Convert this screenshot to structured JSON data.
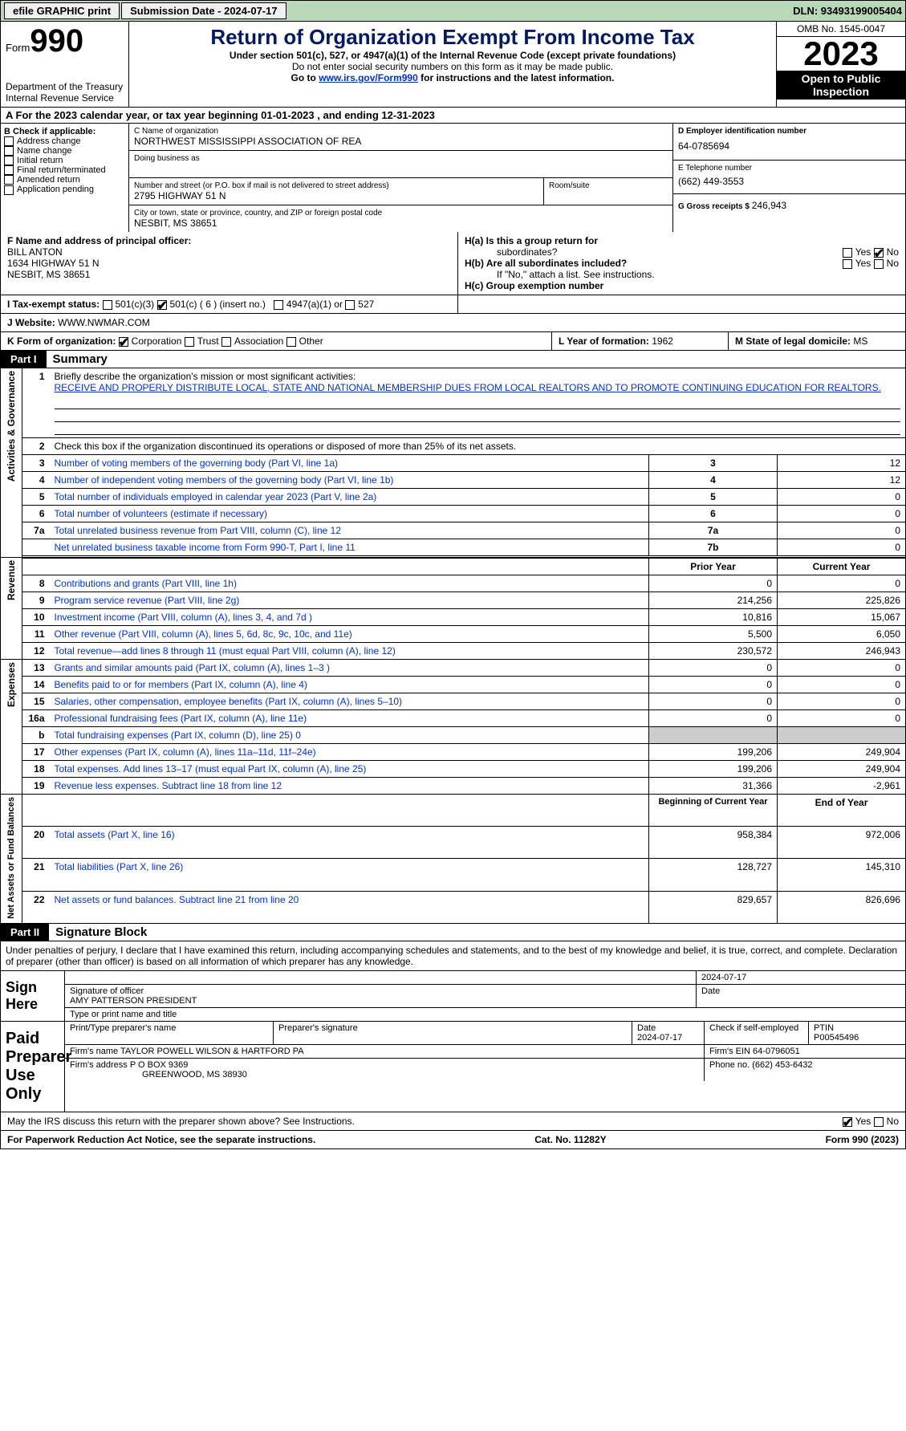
{
  "topbar": {
    "efile_label": "efile GRAPHIC print",
    "submission_label": "Submission Date - 2024-07-17",
    "dln_label": "DLN: 93493199005404"
  },
  "header": {
    "form_word": "Form",
    "form_number": "990",
    "title": "Return of Organization Exempt From Income Tax",
    "subtitle": "Under section 501(c), 527, or 4947(a)(1) of the Internal Revenue Code (except private foundations)",
    "note1": "Do not enter social security numbers on this form as it may be made public.",
    "note2_prefix": "Go to ",
    "note2_link": "www.irs.gov/Form990",
    "note2_suffix": " for instructions and the latest information.",
    "dept": "Department of the Treasury",
    "dept2": "Internal Revenue Service",
    "omb": "OMB No. 1545-0047",
    "year": "2023",
    "inspection": "Open to Public Inspection"
  },
  "period": {
    "text": "A For the 2023 calendar year, or tax year beginning 01-01-2023    , and ending 12-31-2023"
  },
  "boxB": {
    "label": "B Check if applicable:",
    "items": [
      "Address change",
      "Name change",
      "Initial return",
      "Final return/terminated",
      "Amended return",
      "Application pending"
    ]
  },
  "boxC": {
    "name_label": "C Name of organization",
    "name": "NORTHWEST MISSISSIPPI ASSOCIATION OF REA",
    "dba_label": "Doing business as",
    "addr_label": "Number and street (or P.O. box if mail is not delivered to street address)",
    "addr": "2795 HIGHWAY 51 N",
    "room_label": "Room/suite",
    "city_label": "City or town, state or province, country, and ZIP or foreign postal code",
    "city": "NESBIT, MS  38651"
  },
  "boxD": {
    "ein_label": "D Employer identification number",
    "ein": "64-0785694",
    "phone_label": "E Telephone number",
    "phone": "(662) 449-3553",
    "gross_label": "G Gross receipts $ ",
    "gross": "246,943"
  },
  "boxF": {
    "label": "F  Name and address of principal officer:",
    "name": "BILL ANTON",
    "addr": "1634 HIGHWAY 51 N",
    "city": "NESBIT, MS  38651"
  },
  "boxH": {
    "a_label": "H(a)  Is this a group return for",
    "a_label2": "subordinates?",
    "b_label": "H(b)  Are all subordinates included?",
    "b_note": "If \"No,\" attach a list. See instructions.",
    "c_label": "H(c)  Group exemption number ",
    "yes": "Yes",
    "no": "No"
  },
  "boxI": {
    "label": "I    Tax-exempt status:",
    "opt1": "501(c)(3)",
    "opt2": "501(c) ( 6 ) (insert no.)",
    "opt3": "4947(a)(1) or",
    "opt4": "527"
  },
  "boxJ": {
    "label": "J    Website: ",
    "value": "WWW.NWMAR.COM"
  },
  "boxK": {
    "label": "K Form of organization:",
    "opts": [
      "Corporation",
      "Trust",
      "Association",
      "Other"
    ]
  },
  "boxL": {
    "label": "L Year of formation: ",
    "value": "1962"
  },
  "boxM": {
    "label": "M State of legal domicile: ",
    "value": "MS"
  },
  "part1": {
    "label": "Part I",
    "title": "Summary"
  },
  "summary": {
    "activities_label": "Activities & Governance",
    "revenue_label": "Revenue",
    "expenses_label": "Expenses",
    "netassets_label": "Net Assets or Fund Balances",
    "line1_label": "Briefly describe the organization's mission or most significant activities:",
    "line1_text": "RECEIVE AND PROPERLY DISTRIBUTE LOCAL, STATE AND NATIONAL MEMBERSHIP DUES FROM LOCAL REALTORS AND TO PROMOTE CONTINUING EDUCATION FOR REALTORS.",
    "line2_label": "Check this box      if the organization discontinued its operations or disposed of more than 25% of its net assets.",
    "rows_ag": [
      {
        "n": "3",
        "label": "Number of voting members of the governing body (Part VI, line 1a)",
        "box": "3",
        "val": "12"
      },
      {
        "n": "4",
        "label": "Number of independent voting members of the governing body (Part VI, line 1b)",
        "box": "4",
        "val": "12"
      },
      {
        "n": "5",
        "label": "Total number of individuals employed in calendar year 2023 (Part V, line 2a)",
        "box": "5",
        "val": "0"
      },
      {
        "n": "6",
        "label": "Total number of volunteers (estimate if necessary)",
        "box": "6",
        "val": "0"
      },
      {
        "n": "7a",
        "label": "Total unrelated business revenue from Part VIII, column (C), line 12",
        "box": "7a",
        "val": "0"
      },
      {
        "n": "",
        "label": "Net unrelated business taxable income from Form 990-T, Part I, line 11",
        "box": "7b",
        "val": "0"
      }
    ],
    "prior_year": "Prior Year",
    "current_year": "Current Year",
    "rows_rev": [
      {
        "n": "8",
        "label": "Contributions and grants (Part VIII, line 1h)",
        "prior": "0",
        "curr": "0"
      },
      {
        "n": "9",
        "label": "Program service revenue (Part VIII, line 2g)",
        "prior": "214,256",
        "curr": "225,826"
      },
      {
        "n": "10",
        "label": "Investment income (Part VIII, column (A), lines 3, 4, and 7d )",
        "prior": "10,816",
        "curr": "15,067"
      },
      {
        "n": "11",
        "label": "Other revenue (Part VIII, column (A), lines 5, 6d, 8c, 9c, 10c, and 11e)",
        "prior": "5,500",
        "curr": "6,050"
      },
      {
        "n": "12",
        "label": "Total revenue—add lines 8 through 11 (must equal Part VIII, column (A), line 12)",
        "prior": "230,572",
        "curr": "246,943"
      }
    ],
    "rows_exp": [
      {
        "n": "13",
        "label": "Grants and similar amounts paid (Part IX, column (A), lines 1–3 )",
        "prior": "0",
        "curr": "0"
      },
      {
        "n": "14",
        "label": "Benefits paid to or for members (Part IX, column (A), line 4)",
        "prior": "0",
        "curr": "0"
      },
      {
        "n": "15",
        "label": "Salaries, other compensation, employee benefits (Part IX, column (A), lines 5–10)",
        "prior": "0",
        "curr": "0"
      },
      {
        "n": "16a",
        "label": "Professional fundraising fees (Part IX, column (A), line 11e)",
        "prior": "0",
        "curr": "0"
      },
      {
        "n": "b",
        "label": "Total fundraising expenses (Part IX, column (D), line 25) 0",
        "prior": "",
        "curr": "",
        "shaded": true
      },
      {
        "n": "17",
        "label": "Other expenses (Part IX, column (A), lines 11a–11d, 11f–24e)",
        "prior": "199,206",
        "curr": "249,904"
      },
      {
        "n": "18",
        "label": "Total expenses. Add lines 13–17 (must equal Part IX, column (A), line 25)",
        "prior": "199,206",
        "curr": "249,904"
      },
      {
        "n": "19",
        "label": "Revenue less expenses. Subtract line 18 from line 12",
        "prior": "31,366",
        "curr": "-2,961"
      }
    ],
    "beg_year": "Beginning of Current Year",
    "end_year": "End of Year",
    "rows_na": [
      {
        "n": "20",
        "label": "Total assets (Part X, line 16)",
        "prior": "958,384",
        "curr": "972,006"
      },
      {
        "n": "21",
        "label": "Total liabilities (Part X, line 26)",
        "prior": "128,727",
        "curr": "145,310"
      },
      {
        "n": "22",
        "label": "Net assets or fund balances. Subtract line 21 from line 20",
        "prior": "829,657",
        "curr": "826,696"
      }
    ]
  },
  "part2": {
    "label": "Part II",
    "title": "Signature Block"
  },
  "sig": {
    "declaration": "Under penalties of perjury, I declare that I have examined this return, including accompanying schedules and statements, and to the best of my knowledge and belief, it is true, correct, and complete. Declaration of preparer (other than officer) is based on all information of which preparer has any knowledge.",
    "sign_here": "Sign Here",
    "sig_officer_label": "Signature of officer",
    "officer_name": "AMY PATTERSON  PRESIDENT",
    "type_label": "Type or print name and title",
    "date_label": "Date",
    "date_val": "2024-07-17",
    "paid_label": "Paid Preparer Use Only",
    "prep_name_label": "Print/Type preparer's name",
    "prep_sig_label": "Preparer's signature",
    "prep_date": "2024-07-17",
    "check_label": "Check       if self-employed",
    "ptin_label": "PTIN",
    "ptin": "P00545496",
    "firm_name_label": "Firm's name  ",
    "firm_name": "TAYLOR POWELL WILSON & HARTFORD PA",
    "firm_ein_label": "Firm's EIN  ",
    "firm_ein": "64-0796051",
    "firm_addr_label": "Firm's address ",
    "firm_addr": "P O BOX 9369",
    "firm_city": "GREENWOOD, MS  38930",
    "phone_label": "Phone no. ",
    "phone": "(662) 453-6432",
    "discuss": "May the IRS discuss this return with the preparer shown above? See Instructions."
  },
  "footer": {
    "left": "For Paperwork Reduction Act Notice, see the separate instructions.",
    "mid": "Cat. No. 11282Y",
    "right": "Form 990 (2023)"
  },
  "colors": {
    "topbar_bg": "#b8d8b8",
    "link": "#0033cc",
    "title": "#001a66"
  }
}
